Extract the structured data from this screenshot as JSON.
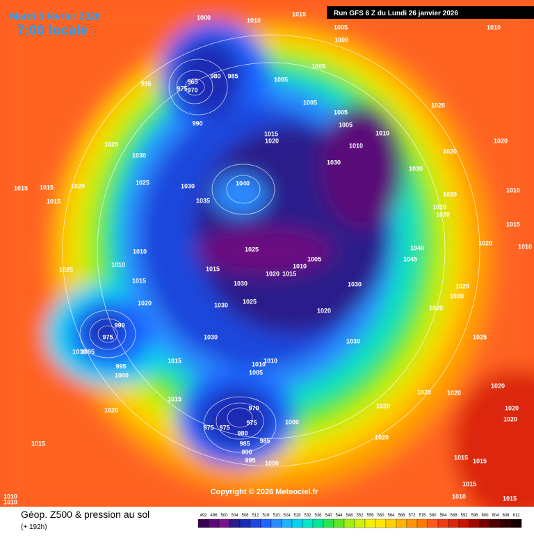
{
  "header": {
    "date": "Mardi 3 février 2026",
    "time": "7:00 locale",
    "run": "Run GFS 6 Z du Lundi 26 janvier 2026"
  },
  "copyright": "Copyright © 2026 Meteociel.fr",
  "footer": {
    "title": "Géop. Z500 & pression au sol",
    "lead": "(+ 192h)"
  },
  "legend": {
    "levels": [
      492,
      496,
      500,
      504,
      508,
      512,
      516,
      520,
      524,
      528,
      532,
      536,
      540,
      544,
      548,
      552,
      556,
      560,
      564,
      568,
      572,
      576,
      580,
      584,
      588,
      592,
      596,
      600,
      604,
      608,
      612
    ],
    "colors": [
      "#3a0050",
      "#5a0a78",
      "#7a148c",
      "#2a1a8a",
      "#1a2ab4",
      "#1e46dc",
      "#1e64ff",
      "#2a8cff",
      "#1eb4ff",
      "#00d2f0",
      "#00e6c8",
      "#00e696",
      "#28e650",
      "#64e628",
      "#a0f014",
      "#d2f00a",
      "#f0f000",
      "#ffe600",
      "#ffd200",
      "#ffb400",
      "#ff9600",
      "#ff7800",
      "#ff5a1e",
      "#f03c14",
      "#dc280a",
      "#c81400",
      "#a00a00",
      "#780000",
      "#500000",
      "#300000",
      "#140000"
    ]
  },
  "isobar_labels": [
    1000,
    1015,
    1010,
    1005,
    1000,
    1010,
    995,
    965,
    975,
    970,
    980,
    985,
    1005,
    1005,
    1005,
    1005,
    1005,
    1010,
    1025,
    990,
    1015,
    1020,
    1010,
    1030,
    1020,
    1020,
    1025,
    1030,
    1030,
    1015,
    1015,
    1020,
    1025,
    1030,
    1040,
    1035,
    1020,
    1020,
    1020,
    1010,
    1015,
    1015,
    1010,
    1010,
    1025,
    1015,
    1015,
    1025,
    1020,
    1015,
    1010,
    1005,
    1030,
    1040,
    1045,
    1020,
    1010,
    1020,
    1030,
    1025,
    1030,
    1020,
    1025,
    1020,
    1030,
    990,
    975,
    1030,
    1030,
    1025,
    1010,
    1005,
    995,
    1000,
    1015,
    1010,
    1010,
    1005,
    1020,
    1020,
    1020,
    1015,
    1020,
    970,
    975,
    975,
    975,
    980,
    985,
    990,
    985,
    1000,
    1020,
    1020,
    1020,
    1020,
    995,
    1000,
    1015,
    1015,
    1015,
    1015,
    1010,
    1010,
    1010,
    1015
  ]
}
